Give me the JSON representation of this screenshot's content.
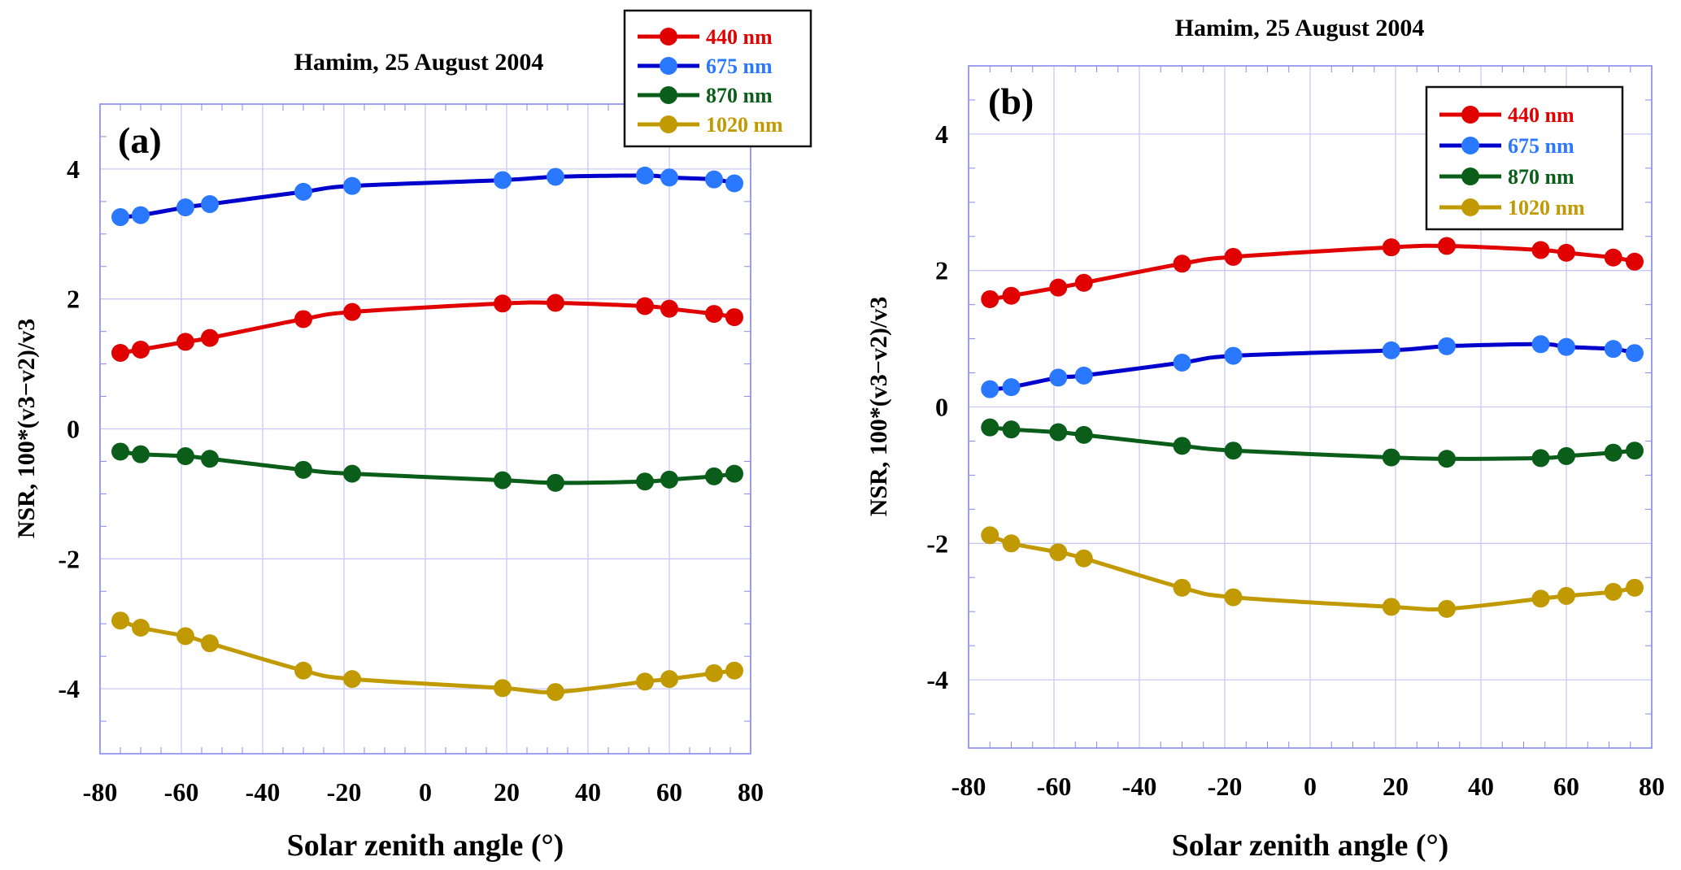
{
  "chart_data": [
    {
      "type": "line",
      "panel_label": "(a)",
      "title": "Hamim, 25 August 2004",
      "xlabel": "Solar zenith angle (°)",
      "ylabel": "NSR, 100*(v3−v2)/v3",
      "xlim": [
        -80,
        80
      ],
      "ylim": [
        -5,
        5
      ],
      "xticks": [
        -80,
        -60,
        -40,
        -20,
        0,
        20,
        40,
        60,
        80
      ],
      "yticks": [
        -4,
        -2,
        0,
        2,
        4
      ],
      "grid": true,
      "legend_position": "top-right (outside above plot)",
      "x": [
        -75,
        -70,
        -59,
        -53,
        -30,
        -18,
        19,
        32,
        54,
        60,
        71,
        76
      ],
      "series": [
        {
          "name": "440 nm",
          "line_color": "#e00000",
          "marker_color": "#e00000",
          "values": [
            1.17,
            1.22,
            1.34,
            1.4,
            1.69,
            1.8,
            1.93,
            1.94,
            1.89,
            1.85,
            1.77,
            1.72
          ]
        },
        {
          "name": "675 nm",
          "line_color": "#0000cc",
          "marker_color": "#2a78ff",
          "values": [
            3.26,
            3.29,
            3.41,
            3.46,
            3.65,
            3.74,
            3.83,
            3.88,
            3.9,
            3.87,
            3.84,
            3.78
          ]
        },
        {
          "name": "870 nm",
          "line_color": "#0a5e1a",
          "marker_color": "#0a5e1a",
          "values": [
            -0.35,
            -0.39,
            -0.42,
            -0.46,
            -0.63,
            -0.69,
            -0.79,
            -0.83,
            -0.81,
            -0.78,
            -0.73,
            -0.69
          ]
        },
        {
          "name": "1020 nm",
          "line_color": "#c09a00",
          "marker_color": "#c09a00",
          "values": [
            -2.95,
            -3.06,
            -3.19,
            -3.3,
            -3.72,
            -3.85,
            -3.99,
            -4.05,
            -3.89,
            -3.85,
            -3.76,
            -3.72
          ]
        }
      ]
    },
    {
      "type": "line",
      "panel_label": "(b)",
      "title": "Hamim, 25 August 2004",
      "xlabel": "Solar zenith angle (°)",
      "ylabel": "NSR, 100*(v3−v2)/v3",
      "xlim": [
        -80,
        80
      ],
      "ylim": [
        -5,
        5
      ],
      "xticks": [
        -80,
        -60,
        -40,
        -20,
        0,
        20,
        40,
        60,
        80
      ],
      "yticks": [
        -4,
        -2,
        0,
        2,
        4
      ],
      "grid": true,
      "legend_position": "top-right (inside plot)",
      "x": [
        -75,
        -70,
        -59,
        -53,
        -30,
        -18,
        19,
        32,
        54,
        60,
        71,
        76
      ],
      "series": [
        {
          "name": "440 nm",
          "line_color": "#e00000",
          "marker_color": "#e00000",
          "values": [
            1.58,
            1.63,
            1.75,
            1.82,
            2.1,
            2.2,
            2.34,
            2.36,
            2.3,
            2.26,
            2.19,
            2.13
          ]
        },
        {
          "name": "675 nm",
          "line_color": "#0000cc",
          "marker_color": "#2a78ff",
          "values": [
            0.26,
            0.29,
            0.43,
            0.46,
            0.65,
            0.75,
            0.83,
            0.89,
            0.92,
            0.88,
            0.85,
            0.79
          ]
        },
        {
          "name": "870 nm",
          "line_color": "#0a5e1a",
          "marker_color": "#0a5e1a",
          "values": [
            -0.3,
            -0.33,
            -0.37,
            -0.41,
            -0.57,
            -0.64,
            -0.74,
            -0.76,
            -0.75,
            -0.72,
            -0.67,
            -0.64
          ]
        },
        {
          "name": "1020 nm",
          "line_color": "#c09a00",
          "marker_color": "#c09a00",
          "values": [
            -1.88,
            -2.0,
            -2.13,
            -2.22,
            -2.65,
            -2.79,
            -2.93,
            -2.96,
            -2.81,
            -2.77,
            -2.71,
            -2.65
          ]
        }
      ]
    }
  ],
  "colors": {
    "grid": "#c8c8f4",
    "axis": "#8888ee",
    "text": "#000000"
  }
}
